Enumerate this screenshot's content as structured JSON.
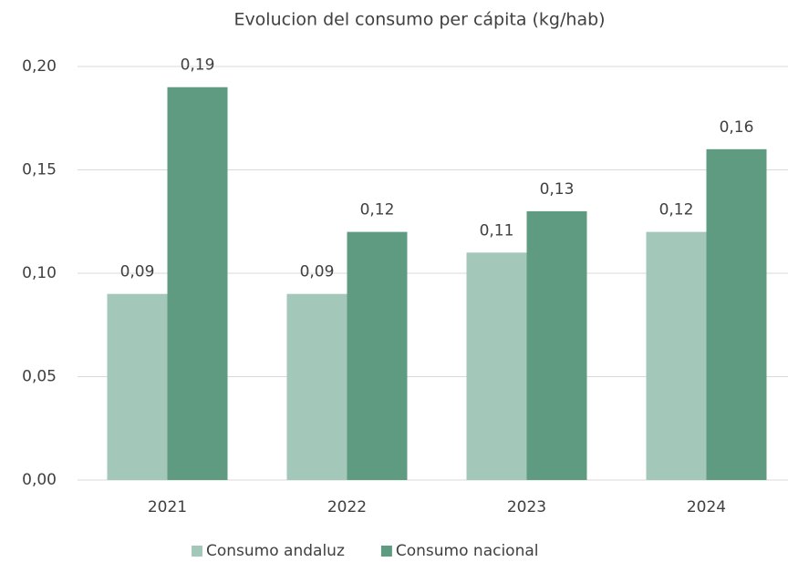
{
  "chart_data": {
    "type": "bar",
    "title": "Evolucion del consumo per cápita (kg/hab)",
    "categories": [
      "2021",
      "2022",
      "2023",
      "2024"
    ],
    "series": [
      {
        "name": "Consumo andaluz",
        "color": "#a3c7b8",
        "values": [
          0.09,
          0.09,
          0.11,
          0.12
        ],
        "value_labels": [
          "0,09",
          "0,09",
          "0,11",
          "0,12"
        ]
      },
      {
        "name": "Consumo nacional",
        "color": "#5f9b80",
        "values": [
          0.19,
          0.12,
          0.13,
          0.16
        ],
        "value_labels": [
          "0,19",
          "0,12",
          "0,13",
          "0,16"
        ]
      }
    ],
    "ylim": [
      0,
      0.2
    ],
    "yticks": [
      {
        "value": 0,
        "label": "0,00"
      },
      {
        "value": 0.05,
        "label": "0,05"
      },
      {
        "value": 0.1,
        "label": "0,10"
      },
      {
        "value": 0.15,
        "label": "0,15"
      },
      {
        "value": 0.2,
        "label": "0,20"
      }
    ],
    "grid": true,
    "legend": "bottom"
  }
}
